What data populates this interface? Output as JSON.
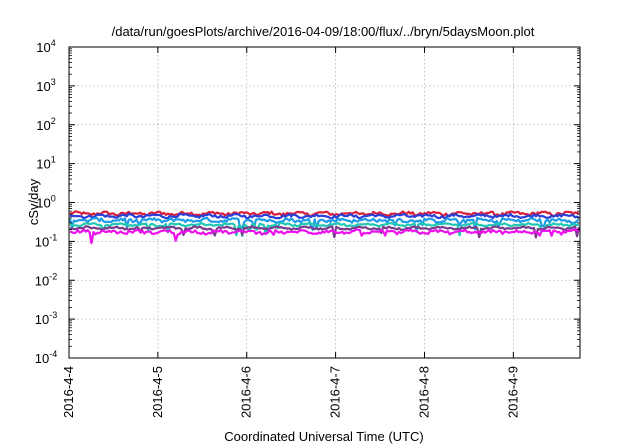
{
  "chart_data": {
    "type": "line",
    "title": "/data/run/goesPlots/archive/2016-04-09/18:00/flux/../bryn/5daysMoon.plot",
    "xlabel": "Coordinated Universal Time (UTC)",
    "ylabel": "cSv/day",
    "yscale": "log",
    "ylim": [
      0.0001,
      10000
    ],
    "xlim": [
      "2016-04-04",
      "2016-04-09 18:00"
    ],
    "grid": true,
    "ytick_labels": [
      {
        "base": "10",
        "exp": "-4"
      },
      {
        "base": "10",
        "exp": "-3"
      },
      {
        "base": "10",
        "exp": "-2"
      },
      {
        "base": "10",
        "exp": "-1"
      },
      {
        "base": "10",
        "exp": "0"
      },
      {
        "base": "10",
        "exp": "1"
      },
      {
        "base": "10",
        "exp": "2"
      },
      {
        "base": "10",
        "exp": "3"
      },
      {
        "base": "10",
        "exp": "4"
      }
    ],
    "xtick_labels": [
      "2016-4-4",
      "2016-4-5",
      "2016-4-6",
      "2016-4-7",
      "2016-4-8",
      "2016-4-9"
    ],
    "series": [
      {
        "color": "#d81e3c",
        "level": 0.52,
        "noise": 0.09
      },
      {
        "color": "#2a3fd8",
        "level": 0.45,
        "noise": 0.08
      },
      {
        "color": "#1e9be6",
        "level": 0.35,
        "noise": 0.1
      },
      {
        "color": "#20c8b4",
        "level": 0.27,
        "noise": 0.05
      },
      {
        "color": "#7a3c8c",
        "level": 0.22,
        "noise": 0.05
      },
      {
        "color": "#ee10ee",
        "level": 0.175,
        "noise": 0.09
      }
    ]
  }
}
